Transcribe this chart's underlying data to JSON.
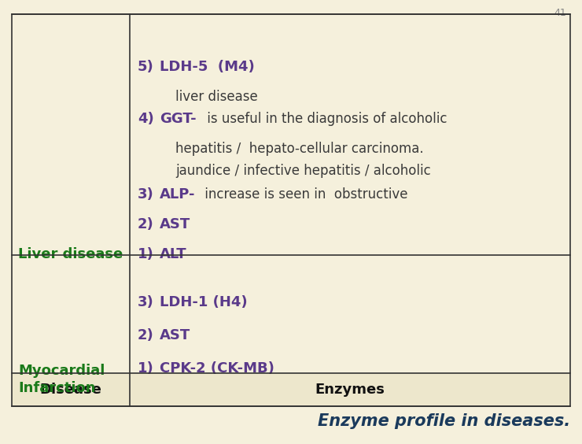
{
  "title": "Enzyme profile in diseases.",
  "title_color": "#1a3a5c",
  "title_fontsize": 15,
  "background_color": "#f5f0dc",
  "header_row": [
    "Disease",
    "Enzymes"
  ],
  "header_fontsize": 13,
  "border_color": "#333333",
  "disease1": "Myocardial\nInfarction",
  "disease1_color": "#1a7a1a",
  "disease2": "Liver disease",
  "disease2_color": "#1a7a1a",
  "page_number": "41",
  "purple": "#5a3a8a",
  "darkgray": "#3a3a3a"
}
